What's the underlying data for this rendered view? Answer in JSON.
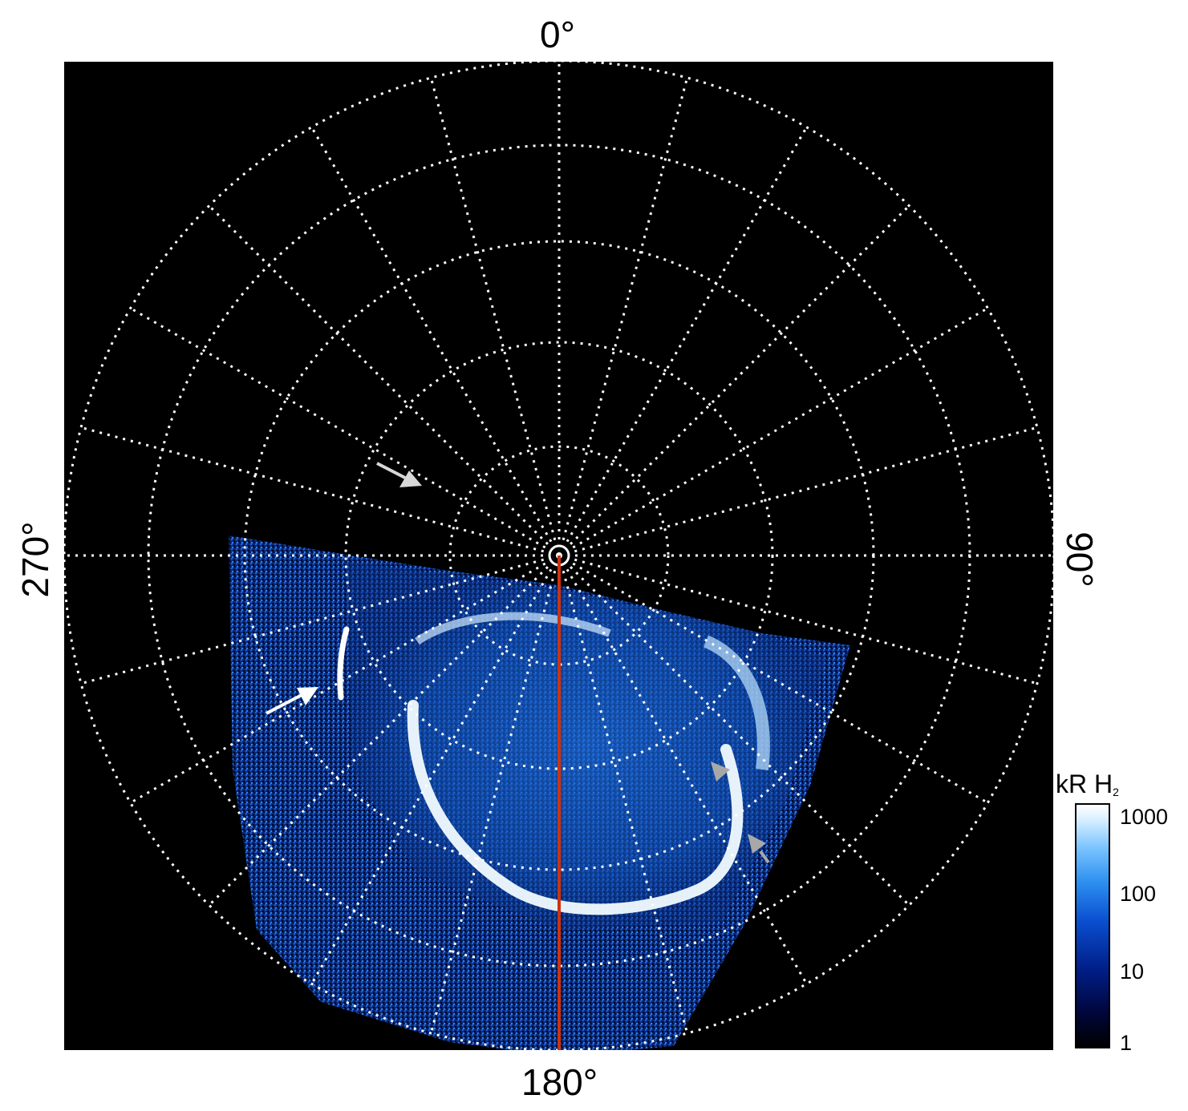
{
  "labels": {
    "top": "0°",
    "bottom": "180°",
    "left": "270°",
    "right": "90°"
  },
  "colorbar": {
    "title_main": "kR H",
    "title_sub": "2",
    "ticks": [
      "1000",
      "100",
      "10",
      "1"
    ],
    "colors": [
      "#000000",
      "#001e88",
      "#2d8ff0",
      "#ffffff"
    ]
  },
  "plot": {
    "background": "#000000",
    "grid_color": "#ffffff",
    "meridian_color": "#cc3311",
    "arrow_white": "#ffffff",
    "arrow_gray": "#aaaaaa"
  }
}
